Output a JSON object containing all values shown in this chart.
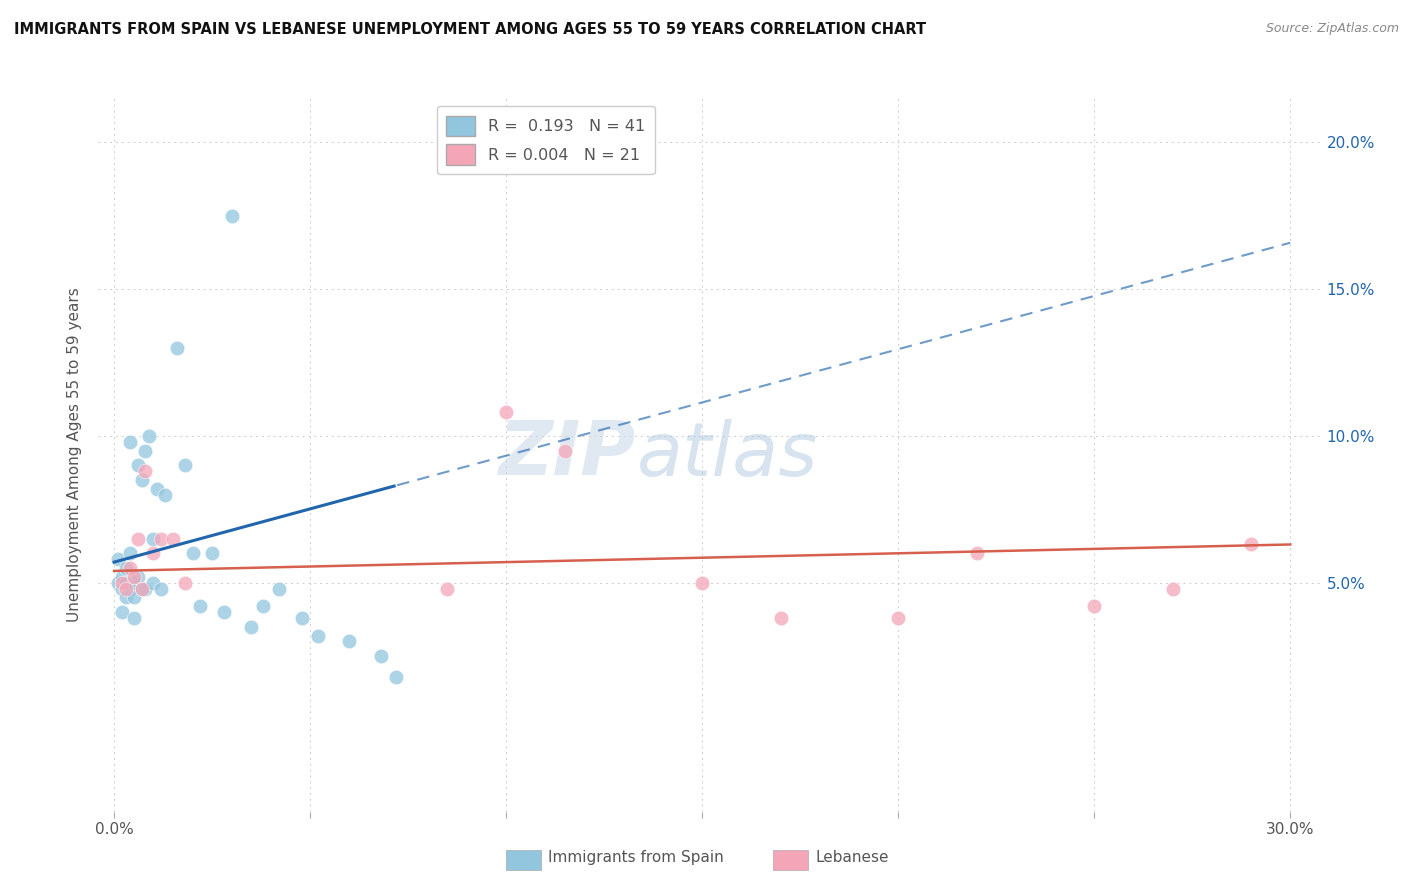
{
  "title": "IMMIGRANTS FROM SPAIN VS LEBANESE UNEMPLOYMENT AMONG AGES 55 TO 59 YEARS CORRELATION CHART",
  "source": "Source: ZipAtlas.com",
  "ylabel": "Unemployment Among Ages 55 to 59 years",
  "xlabel_legend1": "Immigrants from Spain",
  "xlabel_legend2": "Lebanese",
  "R1": 0.193,
  "N1": 41,
  "R2": 0.004,
  "N2": 21,
  "color_blue": "#92c5de",
  "color_pink": "#f4a6b8",
  "color_trend_blue": "#2166ac",
  "color_trend_pink": "#d6604d",
  "watermark_zip": "ZIP",
  "watermark_atlas": "atlas",
  "background_color": "#ffffff",
  "grid_color": "#cccccc",
  "blue_x": [
    0.001,
    0.001,
    0.002,
    0.002,
    0.002,
    0.003,
    0.003,
    0.003,
    0.004,
    0.004,
    0.004,
    0.005,
    0.005,
    0.005,
    0.006,
    0.006,
    0.007,
    0.007,
    0.008,
    0.008,
    0.009,
    0.01,
    0.01,
    0.011,
    0.012,
    0.013,
    0.016,
    0.018,
    0.02,
    0.022,
    0.025,
    0.028,
    0.03,
    0.035,
    0.038,
    0.042,
    0.048,
    0.052,
    0.06,
    0.068,
    0.072
  ],
  "blue_y": [
    0.05,
    0.058,
    0.048,
    0.052,
    0.04,
    0.05,
    0.055,
    0.045,
    0.048,
    0.098,
    0.06,
    0.045,
    0.05,
    0.038,
    0.052,
    0.09,
    0.048,
    0.085,
    0.095,
    0.048,
    0.1,
    0.065,
    0.05,
    0.082,
    0.048,
    0.08,
    0.13,
    0.09,
    0.06,
    0.042,
    0.06,
    0.04,
    0.175,
    0.035,
    0.042,
    0.048,
    0.038,
    0.032,
    0.03,
    0.025,
    0.018
  ],
  "pink_x": [
    0.002,
    0.003,
    0.004,
    0.005,
    0.006,
    0.007,
    0.008,
    0.01,
    0.012,
    0.015,
    0.018,
    0.085,
    0.1,
    0.115,
    0.15,
    0.17,
    0.2,
    0.22,
    0.25,
    0.27,
    0.29
  ],
  "pink_y": [
    0.05,
    0.048,
    0.055,
    0.052,
    0.065,
    0.048,
    0.088,
    0.06,
    0.065,
    0.065,
    0.05,
    0.048,
    0.108,
    0.095,
    0.05,
    0.038,
    0.038,
    0.06,
    0.042,
    0.048,
    0.063
  ],
  "trend_blue_x0": 0.0,
  "trend_blue_y0": 0.057,
  "trend_blue_x1": 0.08,
  "trend_blue_y1": 0.086,
  "trend_pink_y": 0.054,
  "xlim_min": -0.004,
  "xlim_max": 0.308,
  "ylim_min": -0.028,
  "ylim_max": 0.215,
  "xticks": [
    0.0,
    0.05,
    0.1,
    0.15,
    0.2,
    0.25,
    0.3
  ],
  "yticks": [
    0.05,
    0.1,
    0.15,
    0.2
  ]
}
